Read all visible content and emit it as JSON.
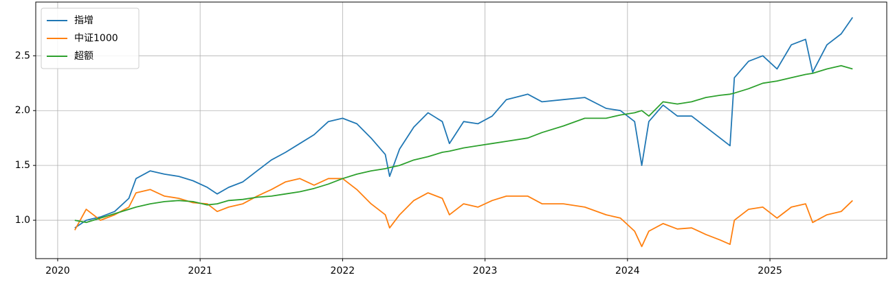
{
  "chart_data": {
    "type": "line",
    "x": [
      2020.12,
      2020.2,
      2020.3,
      2020.4,
      2020.5,
      2020.55,
      2020.65,
      2020.75,
      2020.85,
      2020.95,
      2021.05,
      2021.12,
      2021.2,
      2021.3,
      2021.4,
      2021.5,
      2021.6,
      2021.7,
      2021.8,
      2021.9,
      2022.0,
      2022.1,
      2022.2,
      2022.3,
      2022.33,
      2022.4,
      2022.5,
      2022.6,
      2022.7,
      2022.75,
      2022.85,
      2022.95,
      2023.05,
      2023.15,
      2023.3,
      2023.4,
      2023.55,
      2023.7,
      2023.85,
      2023.95,
      2024.05,
      2024.1,
      2024.15,
      2024.25,
      2024.35,
      2024.45,
      2024.55,
      2024.65,
      2024.72,
      2024.75,
      2024.85,
      2024.95,
      2025.05,
      2025.15,
      2025.25,
      2025.3,
      2025.4,
      2025.5,
      2025.58
    ],
    "series": [
      {
        "name": "指增",
        "color": "#1f77b4",
        "values": [
          0.93,
          1.0,
          1.03,
          1.08,
          1.2,
          1.38,
          1.45,
          1.42,
          1.4,
          1.36,
          1.3,
          1.24,
          1.3,
          1.35,
          1.45,
          1.55,
          1.62,
          1.7,
          1.78,
          1.9,
          1.93,
          1.88,
          1.75,
          1.6,
          1.4,
          1.65,
          1.85,
          1.98,
          1.9,
          1.7,
          1.9,
          1.88,
          1.95,
          2.1,
          2.15,
          2.08,
          2.1,
          2.12,
          2.02,
          2.0,
          1.9,
          1.5,
          1.9,
          2.05,
          1.95,
          1.95,
          1.85,
          1.75,
          1.68,
          2.3,
          2.45,
          2.5,
          2.38,
          2.6,
          2.65,
          2.35,
          2.6,
          2.7,
          2.85
        ]
      },
      {
        "name": "中证1000",
        "color": "#ff7f0e",
        "values": [
          0.91,
          1.1,
          1.0,
          1.05,
          1.12,
          1.25,
          1.28,
          1.22,
          1.2,
          1.16,
          1.15,
          1.08,
          1.12,
          1.15,
          1.22,
          1.28,
          1.35,
          1.38,
          1.32,
          1.38,
          1.38,
          1.28,
          1.15,
          1.05,
          0.93,
          1.05,
          1.18,
          1.25,
          1.2,
          1.05,
          1.15,
          1.12,
          1.18,
          1.22,
          1.22,
          1.15,
          1.15,
          1.12,
          1.05,
          1.02,
          0.9,
          0.76,
          0.9,
          0.97,
          0.92,
          0.93,
          0.87,
          0.82,
          0.78,
          1.0,
          1.1,
          1.12,
          1.02,
          1.12,
          1.15,
          0.98,
          1.05,
          1.08,
          1.18
        ]
      },
      {
        "name": "超额",
        "color": "#2ca02c",
        "values": [
          1.0,
          0.98,
          1.02,
          1.06,
          1.1,
          1.12,
          1.15,
          1.17,
          1.18,
          1.17,
          1.14,
          1.15,
          1.18,
          1.19,
          1.21,
          1.22,
          1.24,
          1.26,
          1.29,
          1.33,
          1.38,
          1.42,
          1.45,
          1.47,
          1.48,
          1.5,
          1.55,
          1.58,
          1.62,
          1.63,
          1.66,
          1.68,
          1.7,
          1.72,
          1.75,
          1.8,
          1.86,
          1.93,
          1.93,
          1.96,
          1.98,
          2.0,
          1.95,
          2.08,
          2.06,
          2.08,
          2.12,
          2.14,
          2.15,
          2.16,
          2.2,
          2.25,
          2.27,
          2.3,
          2.33,
          2.34,
          2.38,
          2.41,
          2.38
        ]
      }
    ],
    "xlim": [
      2019.846,
      2025.82
    ],
    "xticks": [
      2020,
      2021,
      2022,
      2023,
      2024,
      2025
    ],
    "ylim": [
      0.65,
      2.99
    ],
    "yticks": [
      {
        "value": 1,
        "label": "1.0"
      },
      1.5,
      {
        "value": 2,
        "label": "2.0"
      },
      2.5
    ],
    "grid": true,
    "legend": "upper-left"
  }
}
